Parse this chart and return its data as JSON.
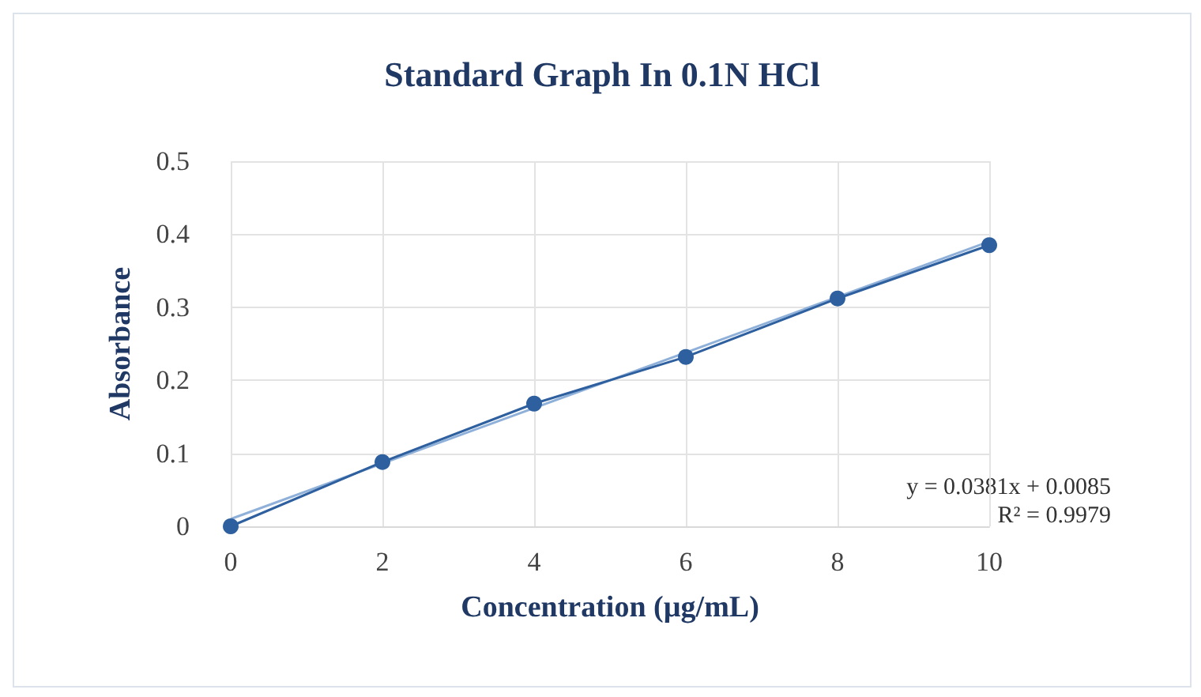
{
  "chart_data": {
    "type": "line",
    "title": "Standard Graph In 0.1N HCl",
    "xlabel": "Concentration (µg/mL)",
    "ylabel": "Absorbance",
    "x": [
      0,
      2,
      4,
      6,
      8,
      10
    ],
    "series": [
      {
        "color": "#2e5f9e",
        "values": [
          0,
          0.088,
          0.168,
          0.232,
          0.312,
          0.385
        ],
        "marker": "circle"
      },
      {
        "type": "line",
        "color": "#8fb0d8",
        "x": [
          0,
          10
        ],
        "values": [
          0.01,
          0.39
        ],
        "marker": "none"
      }
    ],
    "xlim": [
      0,
      10
    ],
    "xticks": [
      0,
      2,
      4,
      6,
      8,
      10
    ],
    "ylim": [
      0,
      0.5
    ],
    "yticks": [
      0,
      0.1,
      0.2,
      0.3,
      0.4,
      0.5
    ],
    "grid": true,
    "annotations": [
      "y = 0.0381x + 0.0085",
      "R² = 0.9979"
    ]
  }
}
